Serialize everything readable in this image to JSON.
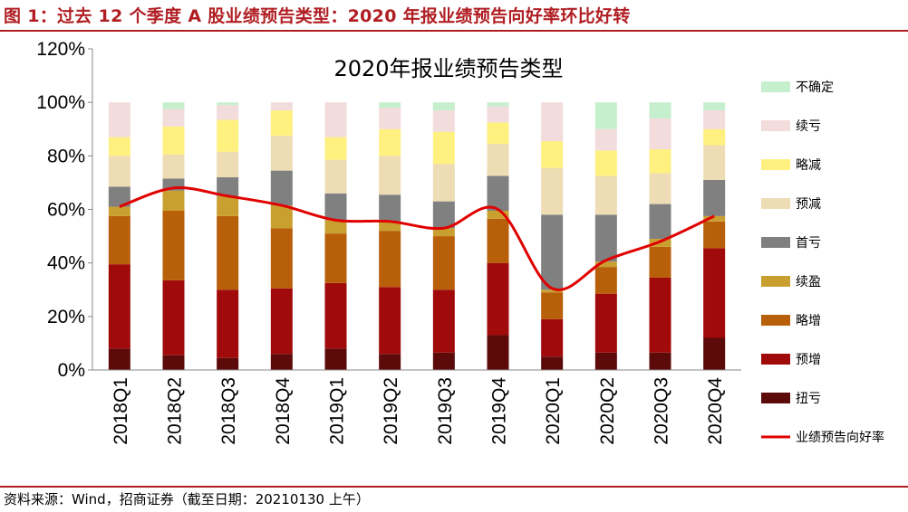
{
  "figure": {
    "title": "图 1：过去 12 个季度 A 股业绩预告类型：2020 年报业绩预告向好率环比好转",
    "source": "资料来源：Wind，招商证券（截至日期：20210130 上午）"
  },
  "chart_data": {
    "type": "bar",
    "stacked": true,
    "title": "2020年报业绩预告类型",
    "xlabel": "",
    "ylabel": "",
    "ylim": [
      0,
      1.2
    ],
    "yticks": [
      "0%",
      "20%",
      "40%",
      "60%",
      "80%",
      "100%",
      "120%"
    ],
    "categories": [
      "2018Q1",
      "2018Q2",
      "2018Q3",
      "2018Q4",
      "2019Q1",
      "2019Q2",
      "2019Q3",
      "2019Q4",
      "2020Q1",
      "2020Q2",
      "2020Q3",
      "2020Q4"
    ],
    "grid": false,
    "legend_position": "right",
    "series": [
      {
        "name": "扭亏",
        "color": "#5C0A0A",
        "values": [
          0.08,
          0.055,
          0.045,
          0.06,
          0.08,
          0.06,
          0.065,
          0.13,
          0.05,
          0.065,
          0.065,
          0.12
        ]
      },
      {
        "name": "预增",
        "color": "#A00A0A",
        "values": [
          0.315,
          0.28,
          0.255,
          0.245,
          0.245,
          0.25,
          0.235,
          0.27,
          0.14,
          0.22,
          0.28,
          0.335
        ]
      },
      {
        "name": "略增",
        "color": "#B85F0A",
        "values": [
          0.18,
          0.26,
          0.275,
          0.225,
          0.185,
          0.21,
          0.2,
          0.165,
          0.1,
          0.1,
          0.115,
          0.1
        ]
      },
      {
        "name": "续盈",
        "color": "#C9A030",
        "values": [
          0.035,
          0.075,
          0.075,
          0.085,
          0.05,
          0.035,
          0.03,
          0.03,
          0.01,
          0.02,
          0.03,
          0.02
        ]
      },
      {
        "name": "首亏",
        "color": "#808080",
        "values": [
          0.075,
          0.045,
          0.07,
          0.13,
          0.1,
          0.1,
          0.1,
          0.13,
          0.28,
          0.175,
          0.13,
          0.135
        ]
      },
      {
        "name": "预减",
        "color": "#EDDCB4",
        "values": [
          0.115,
          0.09,
          0.095,
          0.13,
          0.125,
          0.145,
          0.14,
          0.12,
          0.175,
          0.145,
          0.115,
          0.13
        ]
      },
      {
        "name": "略减",
        "color": "#FFF080",
        "values": [
          0.07,
          0.105,
          0.12,
          0.095,
          0.085,
          0.1,
          0.12,
          0.08,
          0.1,
          0.095,
          0.09,
          0.06
        ]
      },
      {
        "name": "续亏",
        "color": "#F2DCDC",
        "values": [
          0.13,
          0.065,
          0.055,
          0.03,
          0.13,
          0.08,
          0.08,
          0.06,
          0.145,
          0.08,
          0.115,
          0.07
        ]
      },
      {
        "name": "不确定",
        "color": "#C6EFCE",
        "values": [
          0,
          0.025,
          0.01,
          0,
          0,
          0.02,
          0.03,
          0.015,
          0,
          0.1,
          0.06,
          0.03
        ]
      }
    ],
    "line": {
      "name": "业绩预告向好率",
      "color": "#E00000",
      "values": [
        0.61,
        0.68,
        0.65,
        0.615,
        0.56,
        0.555,
        0.53,
        0.6,
        0.305,
        0.41,
        0.48,
        0.575
      ]
    }
  }
}
